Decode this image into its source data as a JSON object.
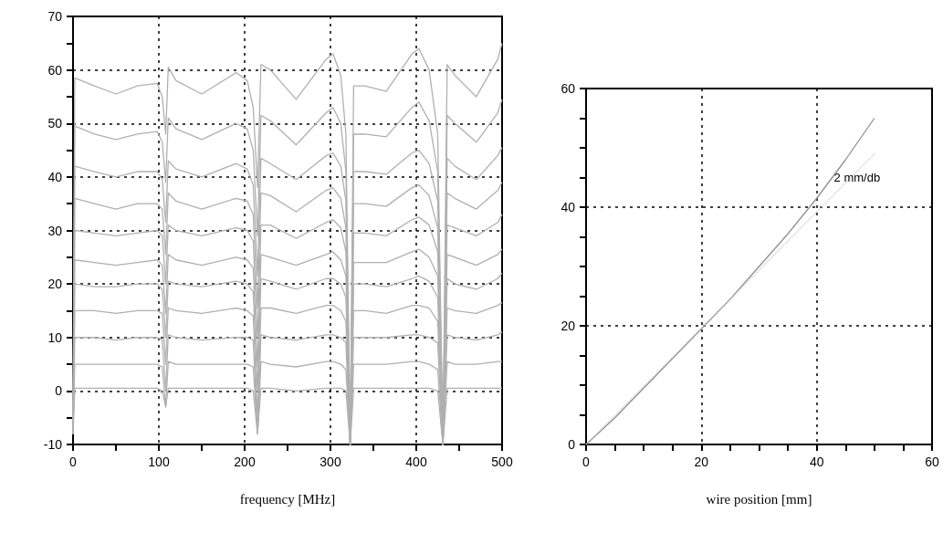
{
  "chart_data": [
    {
      "type": "line",
      "xlabel": "frequency [MHz]",
      "xlim": [
        0,
        500
      ],
      "ylim": [
        -10,
        70
      ],
      "grid": true,
      "marker": "none",
      "xticks": [
        0,
        {
          "value": 50,
          "label": null
        },
        100,
        {
          "value": 150,
          "label": null
        },
        200,
        {
          "value": 250,
          "label": null
        },
        300,
        {
          "value": 350,
          "label": null
        },
        400,
        {
          "value": 450,
          "label": null
        },
        500
      ],
      "yticks": [
        -10,
        {
          "value": -5,
          "label": null
        },
        0,
        {
          "value": 5,
          "label": null
        },
        10,
        {
          "value": 15,
          "label": null
        },
        20,
        {
          "value": 25,
          "label": null
        },
        30,
        {
          "value": 35,
          "label": null
        },
        40,
        {
          "value": 45,
          "label": null
        },
        50,
        {
          "value": 55,
          "label": null
        },
        60,
        {
          "value": 65,
          "label": null
        },
        70
      ],
      "x": [
        0,
        2,
        25,
        50,
        75,
        98,
        104,
        108,
        111,
        120,
        150,
        190,
        203,
        210,
        215,
        219,
        230,
        260,
        295,
        303,
        312,
        318,
        323,
        327,
        340,
        365,
        395,
        403,
        415,
        425,
        431,
        436,
        445,
        470,
        495,
        500
      ],
      "series": [
        {
          "color": "#b0b0b0",
          "values": [
            -8,
            58.5,
            57,
            55.5,
            57,
            57.5,
            55,
            48,
            60.5,
            58,
            55.5,
            59.5,
            58,
            53,
            38,
            61,
            60,
            54.5,
            62,
            63,
            59,
            48,
            -10,
            57,
            57,
            56,
            63,
            64,
            60,
            48,
            -10,
            61,
            59,
            55,
            62,
            65
          ]
        },
        {
          "color": "#b0b0b0",
          "values": [
            -8,
            49.5,
            48,
            47,
            48,
            48.5,
            46.5,
            39,
            51,
            49,
            47,
            50,
            49,
            45,
            29,
            51.5,
            50.5,
            46,
            52,
            53,
            50,
            41,
            -10,
            48,
            48,
            47.5,
            53,
            54,
            50.5,
            41,
            -10,
            51.5,
            50,
            46.5,
            52,
            54.5
          ]
        },
        {
          "color": "#b0b0b0",
          "values": [
            -8,
            42,
            41,
            40,
            41,
            41,
            39.5,
            31.5,
            43,
            41.5,
            40,
            42.5,
            41.5,
            38.5,
            21.5,
            43.5,
            42.5,
            39.5,
            44,
            44.5,
            42,
            35.5,
            -10,
            41,
            41,
            40.5,
            44.5,
            45,
            42.5,
            35.5,
            -10,
            43.5,
            42,
            39.5,
            44,
            45.5
          ]
        },
        {
          "color": "#b0b0b0",
          "values": [
            -8,
            36,
            35,
            34,
            35,
            35,
            34,
            25.5,
            37,
            35.5,
            34,
            36,
            35.5,
            33,
            15.5,
            37,
            36.5,
            33.5,
            37.5,
            38,
            36,
            30.5,
            -10,
            35,
            35,
            34.5,
            38,
            38.5,
            36.5,
            30.5,
            -10,
            37,
            36,
            34,
            37.5,
            39
          ]
        },
        {
          "color": "#b0b0b0",
          "values": [
            -8,
            30,
            29.5,
            29,
            29.5,
            30,
            29,
            20,
            31,
            30,
            29,
            30.5,
            30,
            28,
            10,
            31,
            31,
            28.5,
            31.5,
            32,
            30.5,
            26,
            -10,
            29.5,
            29.5,
            29,
            32,
            32.5,
            31,
            26,
            -10,
            31,
            30.5,
            29,
            31.5,
            33
          ]
        },
        {
          "color": "#b0b0b0",
          "values": [
            -8,
            24.5,
            24,
            23.5,
            24,
            24.5,
            23.5,
            14.5,
            25.5,
            24.5,
            23.5,
            25,
            24.5,
            23,
            4.5,
            25.5,
            25,
            23.5,
            25.5,
            26,
            24.5,
            21.5,
            -10,
            24,
            24,
            24,
            26,
            26.5,
            25,
            21.5,
            -10,
            25.5,
            25,
            23.5,
            25.5,
            26.5
          ]
        },
        {
          "color": "#b0b0b0",
          "values": [
            -8,
            20,
            19.5,
            19.5,
            20,
            20,
            19,
            10,
            20.5,
            20,
            19.5,
            20.5,
            20,
            18.5,
            0,
            21,
            20.5,
            19,
            21,
            21,
            20,
            17.5,
            -10,
            20,
            20,
            19.5,
            21,
            21.5,
            20.5,
            17.5,
            -10,
            21,
            20,
            19,
            21,
            22
          ]
        },
        {
          "color": "#b0b0b0",
          "values": [
            -8,
            15,
            15,
            14.5,
            15,
            15,
            14.5,
            5,
            15.5,
            15,
            14.5,
            15.5,
            15,
            14,
            -5,
            15.5,
            15.5,
            14.5,
            16,
            16,
            15,
            13,
            -10,
            15,
            15,
            14.5,
            16,
            16,
            15.5,
            13,
            -10,
            15.5,
            15,
            14.5,
            16,
            16.5
          ]
        },
        {
          "color": "#b0b0b0",
          "values": [
            -8,
            10,
            10,
            9.5,
            10,
            10,
            9.5,
            0,
            10.5,
            10,
            9.5,
            10,
            10,
            9.5,
            -8,
            10.5,
            10,
            9.5,
            10.5,
            10.5,
            10,
            9,
            -10,
            10,
            10,
            10,
            10.5,
            10.5,
            10,
            9,
            -10,
            10.5,
            10,
            9.5,
            10.5,
            11
          ]
        },
        {
          "color": "#b0b0b0",
          "values": [
            -8,
            5,
            5,
            5,
            5,
            5,
            4.5,
            -3,
            5.5,
            5,
            5,
            5,
            5,
            4.5,
            -8,
            5.5,
            5,
            4.5,
            5.5,
            5.5,
            5,
            4,
            -10,
            5,
            5,
            5,
            5.5,
            5.5,
            5,
            4,
            -10,
            5.5,
            5,
            5,
            5.5,
            5.5
          ]
        },
        {
          "color": "#b0b0b0",
          "values": [
            -8,
            0.5,
            0.5,
            0.5,
            0.5,
            0.5,
            0,
            -3,
            0.5,
            0.5,
            0.5,
            0.5,
            0.5,
            0,
            -8,
            0.5,
            0.5,
            0,
            0.5,
            0.5,
            0.5,
            0,
            -10,
            0.5,
            0.5,
            0.5,
            0.5,
            0.5,
            0.5,
            0,
            -10,
            0.5,
            0.5,
            0.5,
            0.5,
            0.5
          ]
        }
      ]
    },
    {
      "type": "line",
      "xlabel": "wire position [mm]",
      "xlim": [
        0,
        60
      ],
      "ylim": [
        0,
        60
      ],
      "grid": true,
      "marker": "none",
      "xticks": [
        0,
        {
          "value": 5,
          "label": null
        },
        {
          "value": 10,
          "label": null
        },
        {
          "value": 15,
          "label": null
        },
        20,
        {
          "value": 25,
          "label": null
        },
        {
          "value": 30,
          "label": null
        },
        {
          "value": 35,
          "label": null
        },
        40,
        {
          "value": 45,
          "label": null
        },
        {
          "value": 50,
          "label": null
        },
        {
          "value": 55,
          "label": null
        },
        60
      ],
      "yticks": [
        0,
        {
          "value": 5,
          "label": null
        },
        {
          "value": 10,
          "label": null
        },
        {
          "value": 15,
          "label": null
        },
        20,
        {
          "value": 25,
          "label": null
        },
        {
          "value": 30,
          "label": null
        },
        {
          "value": 35,
          "label": null
        },
        40,
        {
          "value": 45,
          "label": null
        },
        {
          "value": 50,
          "label": null
        },
        {
          "value": 55,
          "label": null
        },
        60
      ],
      "annotations": [
        {
          "text": "2 mm/db",
          "x": 43,
          "y": 45
        }
      ],
      "series": [
        {
          "color": "#909090",
          "x": [
            0,
            5,
            10,
            15,
            20,
            25,
            30,
            35,
            40,
            45,
            50
          ],
          "values": [
            0,
            4.5,
            9.5,
            14.5,
            19.5,
            24.5,
            30,
            35.5,
            41.5,
            48,
            55
          ]
        },
        {
          "color": "#c8c8c8",
          "line_style": "dotted",
          "x": [
            0,
            50
          ],
          "values": [
            0,
            49
          ]
        }
      ]
    }
  ]
}
